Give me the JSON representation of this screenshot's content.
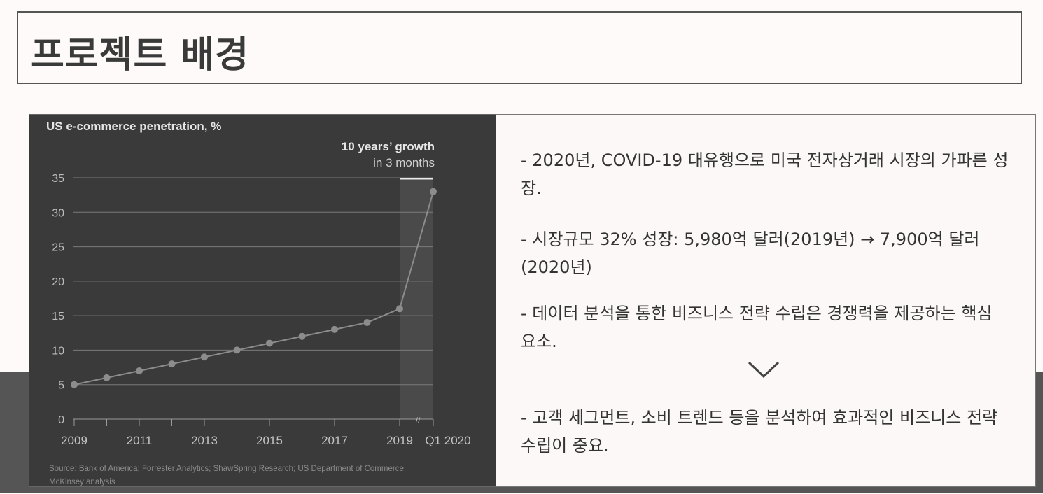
{
  "page_title": "프로젝트 배경",
  "chart_data": {
    "type": "line",
    "title": "US e-commerce penetration, %",
    "annotation": {
      "line1": "10 years’ growth",
      "line2": "in 3 months"
    },
    "categories": [
      "2009",
      "2010",
      "2011",
      "2012",
      "2013",
      "2014",
      "2015",
      "2016",
      "2017",
      "2018",
      "2019",
      "Q1 2020"
    ],
    "values": [
      5,
      6,
      7,
      8,
      9,
      10,
      11,
      12,
      13,
      14,
      16,
      33
    ],
    "x_tick_labels": [
      "2009",
      "2011",
      "2013",
      "2015",
      "2017",
      "2019",
      "Q1 2020"
    ],
    "y_ticks": [
      0,
      5,
      10,
      15,
      20,
      25,
      30,
      35
    ],
    "ylim": [
      0,
      35
    ],
    "grid": true,
    "axis_break_symbol": "//",
    "source": "Source: Bank of America; Forrester Analytics; ShawSpring Research; US Department of Commerce; McKinsey analysis",
    "colors": {
      "background": "#3a3a3a",
      "line": "#8c8c8c",
      "highlight": "#4a4a4a",
      "text": "#e6e6e6"
    }
  },
  "bullets": [
    "- 2020년, COVID-19 대유행으로 미국 전자상거래 시장의 가파른 성장.",
    "- 시장규모 32% 성장: 5,980억 달러(2019년) → 7,900억 달러(2020년)",
    "- 데이터 분석을 통한 비즈니스 전략 수립은 경쟁력을 제공하는 핵심 요소.",
    "- 고객 세그먼트, 소비 트렌드 등을 분석하여 효과적인 비즈니스 전략 수립이 중요."
  ],
  "chevron_icon": "chevron-down-icon"
}
